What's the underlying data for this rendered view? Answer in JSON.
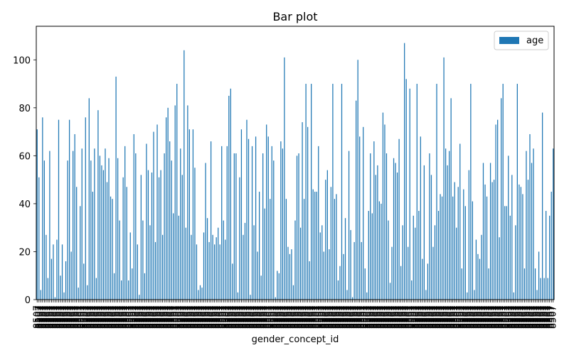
{
  "chart_data": {
    "type": "bar",
    "title": "Bar plot",
    "xlabel": "gender_concept_id",
    "ylabel": "",
    "ylim": [
      0,
      114
    ],
    "yticks": [
      0,
      20,
      40,
      60,
      80,
      100
    ],
    "legend": {
      "placement": "top-right"
    },
    "grid": false,
    "bar_color": "#1f77b4",
    "x_tick_text": "8507",
    "series": [
      {
        "name": "age",
        "values": [
          71,
          51,
          4,
          76,
          58,
          27,
          9,
          62,
          17,
          23,
          1,
          25,
          75,
          10,
          23,
          3,
          16,
          58,
          75,
          20,
          62,
          69,
          47,
          5,
          39,
          63,
          15,
          76,
          6,
          84,
          58,
          45,
          63,
          9,
          79,
          60,
          56,
          54,
          63,
          49,
          59,
          43,
          42,
          11,
          93,
          59,
          33,
          8,
          51,
          64,
          47,
          8,
          28,
          13,
          69,
          61,
          23,
          2,
          52,
          33,
          11,
          65,
          54,
          31,
          53,
          70,
          24,
          73,
          51,
          54,
          27,
          61,
          76,
          80,
          66,
          58,
          36,
          81,
          90,
          35,
          63,
          52,
          104,
          30,
          81,
          71,
          27,
          71,
          55,
          23,
          4,
          6,
          5,
          28,
          57,
          34,
          24,
          66,
          27,
          23,
          26,
          30,
          23,
          64,
          33,
          25,
          64,
          85,
          88,
          15,
          61,
          61,
          3,
          51,
          71,
          27,
          32,
          75,
          67,
          2,
          64,
          31,
          68,
          20,
          45,
          10,
          61,
          38,
          73,
          68,
          42,
          64,
          58,
          1,
          12,
          11,
          66,
          63,
          101,
          42,
          22,
          19,
          21,
          6,
          33,
          60,
          61,
          30,
          74,
          42,
          90,
          72,
          16,
          90,
          46,
          45,
          45,
          64,
          28,
          31,
          20,
          50,
          54,
          21,
          47,
          90,
          42,
          44,
          8,
          14,
          90,
          19,
          34,
          4,
          62,
          29,
          1,
          24,
          83,
          100,
          68,
          24,
          72,
          13,
          3,
          37,
          61,
          36,
          66,
          52,
          56,
          41,
          40,
          78,
          73,
          61,
          33,
          7,
          22,
          59,
          57,
          53,
          67,
          14,
          31,
          107,
          92,
          22,
          88,
          8,
          35,
          30,
          90,
          37,
          68,
          17,
          56,
          4,
          15,
          61,
          52,
          22,
          31,
          90,
          37,
          44,
          43,
          101,
          63,
          56,
          62,
          84,
          43,
          49,
          30,
          47,
          65,
          13,
          46,
          39,
          3,
          54,
          90,
          41,
          4,
          25,
          19,
          17,
          27,
          57,
          48,
          43,
          13,
          57,
          49,
          50,
          73,
          75,
          26,
          84,
          90,
          39,
          39,
          60,
          35,
          52,
          3,
          31,
          90,
          48,
          47,
          44,
          13,
          62,
          50,
          69,
          57,
          63,
          13,
          4,
          20,
          9,
          78,
          9,
          37,
          9,
          35,
          45,
          63
        ]
      }
    ]
  }
}
